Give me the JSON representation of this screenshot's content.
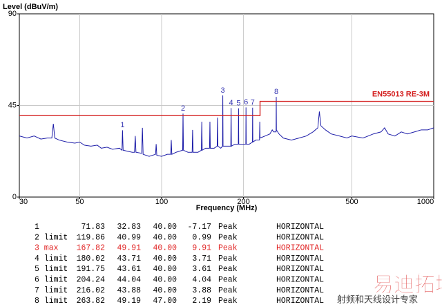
{
  "chart_data": {
    "type": "line",
    "y_label": "Level (dBuV/m)",
    "x_label": "Frequency (MHz)",
    "x_scale": "log",
    "grid": true,
    "xlim": [
      30,
      1000
    ],
    "xticks": [
      30,
      50,
      100,
      200,
      500,
      1000
    ],
    "ylim": [
      0,
      90
    ],
    "yticks": [
      0,
      45,
      90
    ],
    "series": [
      {
        "color": "#1c1ca8",
        "x": [
          30,
          32,
          34,
          36,
          38,
          39.5,
          40,
          40.5,
          42,
          45,
          48,
          50,
          52,
          55,
          58,
          60,
          63,
          66,
          70,
          71.5,
          71.83,
          72.2,
          75,
          78,
          79.5,
          80,
          80.5,
          84.5,
          85,
          85.5,
          90,
          95,
          95.5,
          96,
          100,
          105,
          108,
          108.5,
          109,
          113,
          119.5,
          119.86,
          120.3,
          125,
          129.5,
          130,
          130.5,
          136,
          140,
          140.5,
          141,
          145,
          150,
          150.5,
          151,
          156,
          160,
          160.5,
          161,
          165,
          167.5,
          167.82,
          168.2,
          175,
          179.6,
          180.02,
          180.5,
          186,
          191.4,
          191.75,
          192.1,
          198,
          203.9,
          204.24,
          204.6,
          210,
          215.7,
          216.02,
          216.4,
          222,
          229,
          229.5,
          230,
          240,
          250,
          255,
          258,
          263.5,
          263.82,
          264.2,
          270,
          280,
          300,
          320,
          340,
          360,
          375,
          380,
          385,
          400,
          420,
          450,
          480,
          500,
          550,
          600,
          640,
          660,
          680,
          720,
          760,
          800,
          850,
          900,
          950,
          1000
        ],
        "values": [
          30,
          29,
          30,
          28.5,
          29,
          29,
          36,
          29,
          28,
          27,
          26.5,
          27,
          25.5,
          25,
          25.5,
          24,
          24.5,
          23.5,
          24,
          23,
          32.83,
          23,
          22.5,
          22,
          22,
          30,
          22,
          21.5,
          34,
          21,
          20,
          21,
          26,
          20.5,
          20,
          21,
          21,
          28,
          21,
          22,
          23,
          40.99,
          23,
          22,
          22,
          33,
          22,
          22,
          23,
          37,
          23,
          24,
          24,
          37,
          24,
          24,
          25,
          39,
          25,
          24,
          25,
          49.91,
          25,
          25,
          25,
          43.71,
          25,
          26,
          26,
          43.61,
          26,
          26,
          26,
          44.04,
          26,
          26,
          27,
          43.88,
          27,
          28,
          28,
          37,
          29,
          30,
          31,
          33,
          32,
          32,
          49.19,
          33,
          31,
          29,
          28,
          29,
          30,
          32,
          34,
          42,
          35,
          33,
          31,
          30,
          29,
          30,
          29,
          31,
          32,
          34,
          31,
          30,
          32,
          31,
          32,
          33,
          33,
          34
        ]
      },
      {
        "name": "EN55013 RE-3M",
        "color": "#d42020",
        "x": [
          30,
          230,
          230,
          1000
        ],
        "values": [
          40,
          40,
          47,
          47
        ]
      }
    ],
    "markers": {
      "labels": [
        "1",
        "2",
        "3",
        "4",
        "5",
        "6",
        "7",
        "8"
      ],
      "x": [
        71.83,
        119.86,
        167.82,
        180.02,
        191.75,
        204.24,
        216.02,
        263.82
      ],
      "values": [
        32.83,
        40.99,
        49.91,
        43.71,
        43.61,
        44.04,
        43.88,
        49.19
      ]
    }
  },
  "table": {
    "rows": [
      [
        "1",
        "71.83",
        "32.83",
        "40.00",
        "-7.17",
        "Peak",
        "HORIZONTAL"
      ],
      [
        "2 limit",
        "119.86",
        "40.99",
        "40.00",
        "0.99",
        "Peak",
        "HORIZONTAL"
      ],
      [
        "3 max",
        "167.82",
        "49.91",
        "40.00",
        "9.91",
        "Peak",
        "HORIZONTAL"
      ],
      [
        "4 limit",
        "180.02",
        "43.71",
        "40.00",
        "3.71",
        "Peak",
        "HORIZONTAL"
      ],
      [
        "5 limit",
        "191.75",
        "43.61",
        "40.00",
        "3.61",
        "Peak",
        "HORIZONTAL"
      ],
      [
        "6 limit",
        "204.24",
        "44.04",
        "40.00",
        "4.04",
        "Peak",
        "HORIZONTAL"
      ],
      [
        "7 limit",
        "216.02",
        "43.88",
        "40.00",
        "3.88",
        "Peak",
        "HORIZONTAL"
      ],
      [
        "8 limit",
        "263.82",
        "49.19",
        "47.00",
        "2.19",
        "Peak",
        "HORIZONTAL"
      ]
    ],
    "highlight_row": 2
  },
  "watermark": [
    "易迪拓培训",
    "射频和天线设计专家"
  ]
}
